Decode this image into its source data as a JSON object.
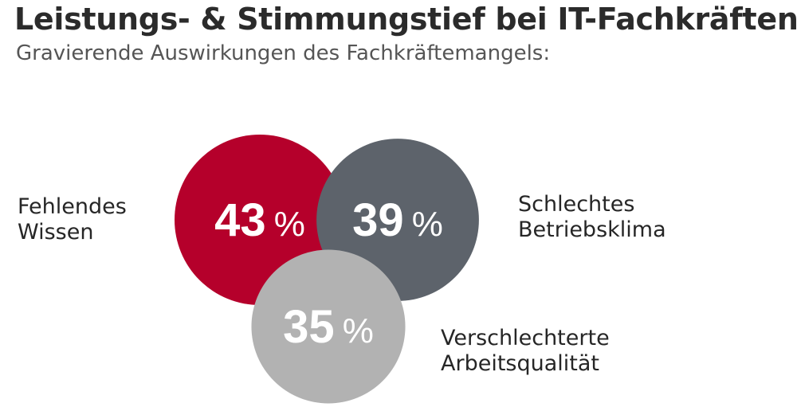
{
  "header": {
    "title": "Leistungs- & Stimmungstief bei IT-Fachkräften",
    "subtitle": "Gravierende Auswirkungen des Fachkräftemangels:"
  },
  "chart_data": {
    "type": "bubble",
    "title": "Leistungs- & Stimmungstief bei IT-Fachkräften",
    "subtitle": "Gravierende Auswirkungen des Fachkräftemangels:",
    "unit": "%",
    "items": [
      {
        "label_lines": [
          "Fehlendes",
          "Wissen"
        ],
        "value": 43,
        "value_text": "43",
        "color": "#b5002b"
      },
      {
        "label_lines": [
          "Schlechtes",
          "Betriebsklima"
        ],
        "value": 39,
        "value_text": "39",
        "color": "#5d636b"
      },
      {
        "label_lines": [
          "Verschlechterte",
          "Arbeitsqualität"
        ],
        "value": 35,
        "value_text": "35",
        "color": "#b2b2b2"
      }
    ]
  }
}
